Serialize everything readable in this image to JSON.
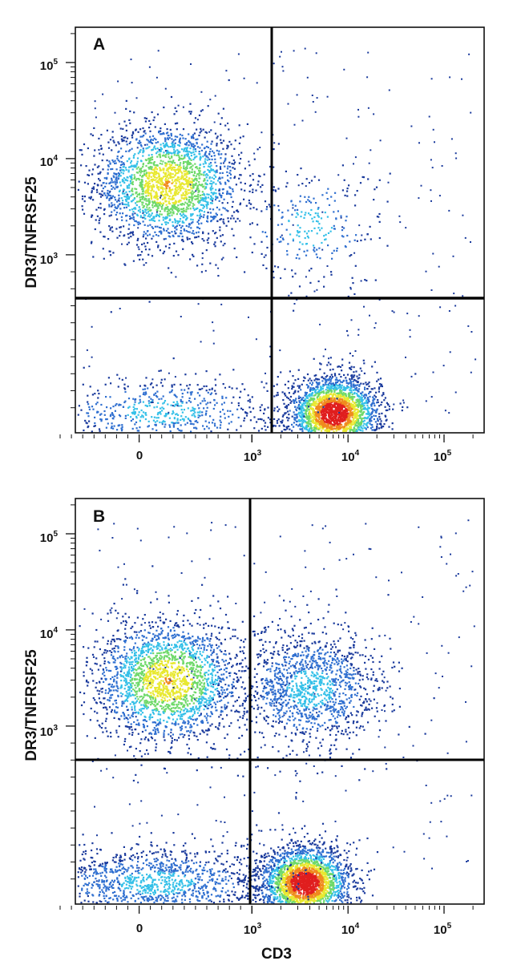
{
  "chart_data": [
    {
      "type": "scatter",
      "subtype": "flow-cytometry-density-plot",
      "panel_label": "A",
      "xlabel": "",
      "ylabel": "DR3/TNFRSF25",
      "x_scale": "biexponential (log above ~10^3)",
      "y_scale": "biexponential (log above ~10^3)",
      "x_tick_labels": [
        "0",
        "10^3",
        "10^4",
        "10^5"
      ],
      "y_tick_labels": [
        "10^3",
        "10^4",
        "10^5"
      ],
      "quadrant_gate": {
        "x": 1600,
        "y": 400
      },
      "populations": [
        {
          "description": "CD3- DR3+ (upper left)",
          "x_center": 250,
          "y_center": 5500,
          "relative_density": "high"
        },
        {
          "description": "CD3+ DR3- (lower right)",
          "x_center": 7000,
          "y_center": 70,
          "relative_density": "very high"
        },
        {
          "description": "CD3- DR3- (lower left)",
          "x_center": 200,
          "y_center": 80,
          "relative_density": "low"
        },
        {
          "description": "CD3+ DR3+ (upper right)",
          "x_center": 4000,
          "y_center": 2000,
          "relative_density": "sparse"
        }
      ],
      "color_scale": [
        "#1a3a9c",
        "#2f6fd0",
        "#35c0e8",
        "#6fd96a",
        "#e8e830",
        "#f08a1e",
        "#e01e1e"
      ]
    },
    {
      "type": "scatter",
      "subtype": "flow-cytometry-density-plot",
      "panel_label": "B",
      "xlabel": "CD3",
      "ylabel": "DR3/TNFRSF25",
      "x_scale": "biexponential (log above ~10^3)",
      "y_scale": "biexponential (log above ~10^3)",
      "x_tick_labels": [
        "0",
        "10^3",
        "10^4",
        "10^5"
      ],
      "y_tick_labels": [
        "10^3",
        "10^4",
        "10^5"
      ],
      "quadrant_gate": {
        "x": 1000,
        "y": 500
      },
      "populations": [
        {
          "description": "CD3- DR3+ (upper left)",
          "x_center": 250,
          "y_center": 3000,
          "relative_density": "high"
        },
        {
          "description": "CD3+ DR3- (lower right)",
          "x_center": 3500,
          "y_center": 80,
          "relative_density": "very high"
        },
        {
          "description": "CD3- DR3- (lower left)",
          "x_center": 150,
          "y_center": 80,
          "relative_density": "moderate"
        },
        {
          "description": "CD3+ DR3+ (upper right)",
          "x_center": 4000,
          "y_center": 2500,
          "relative_density": "moderate"
        }
      ],
      "color_scale": [
        "#1a3a9c",
        "#2f6fd0",
        "#35c0e8",
        "#6fd96a",
        "#e8e830",
        "#f08a1e",
        "#e01e1e"
      ]
    }
  ],
  "labels": {
    "panel_a": "A",
    "panel_b": "B",
    "y_axis_a": "DR3/TNFRSF25",
    "y_axis_b": "DR3/TNFRSF25",
    "x_axis_b": "CD3",
    "tick_base": "10",
    "x_zero": "0",
    "exp_3": "3",
    "exp_4": "4",
    "exp_5": "5"
  }
}
